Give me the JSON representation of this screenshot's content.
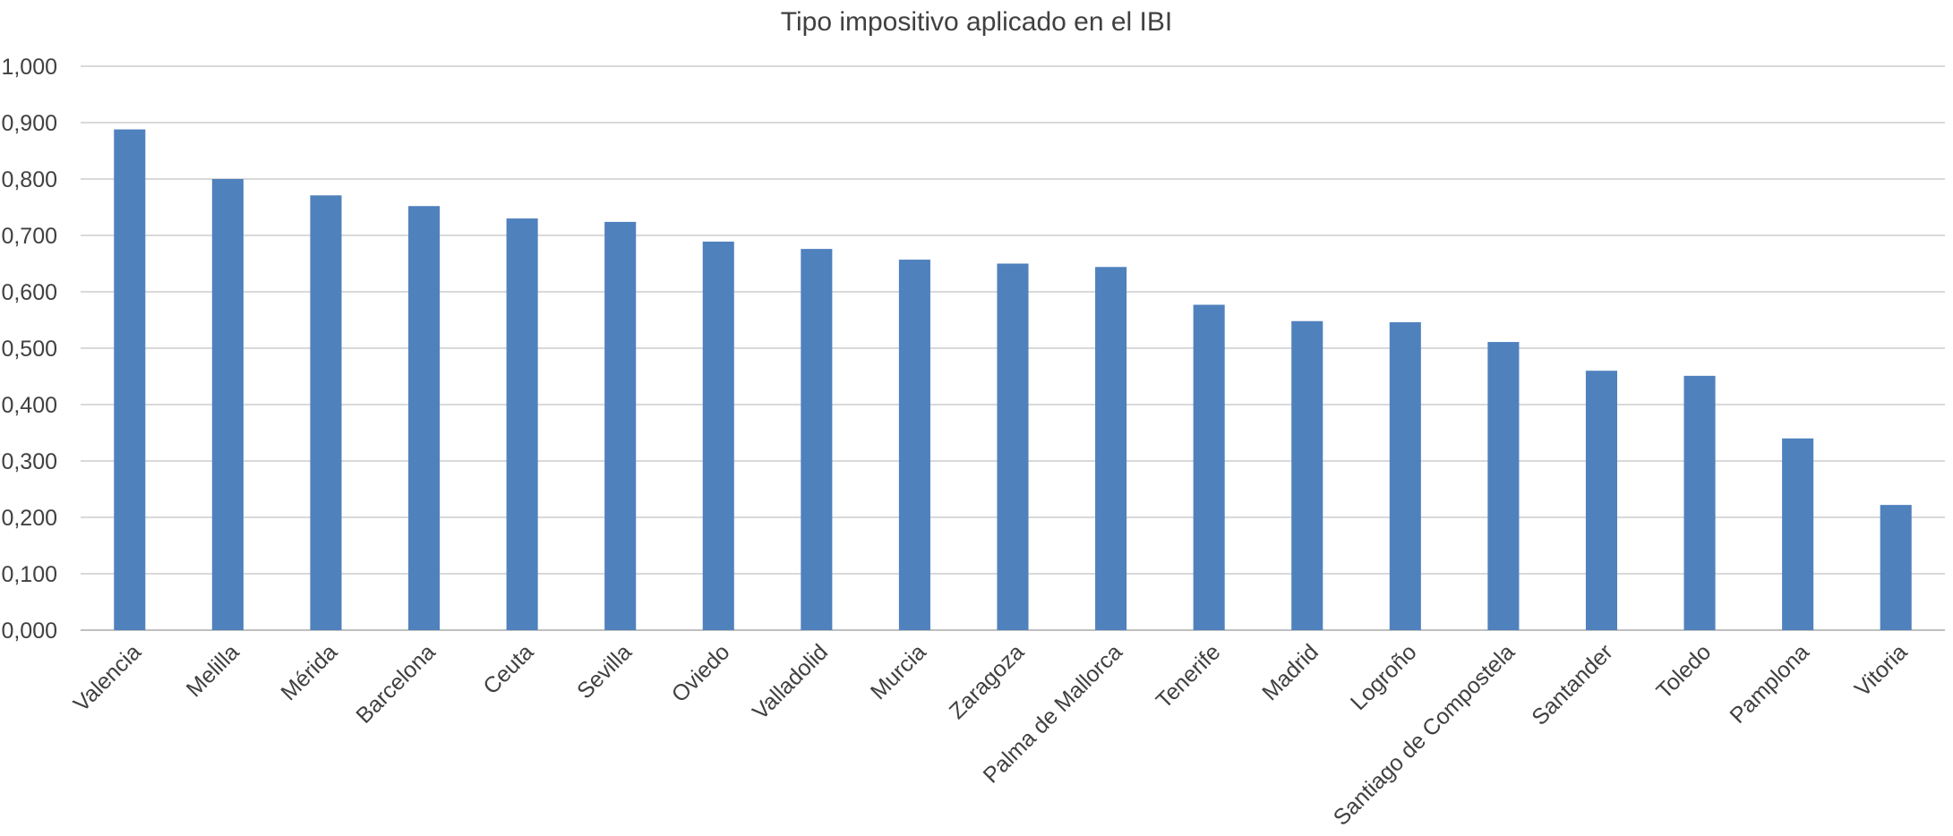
{
  "chart_data": {
    "type": "bar",
    "title": "Tipo impositivo aplicado en el IBI",
    "xlabel": "",
    "ylabel": "",
    "ylim": [
      0,
      1
    ],
    "y_ticks": [
      "0,000",
      "0,100",
      "0,200",
      "0,300",
      "0,400",
      "0,500",
      "0,600",
      "0,700",
      "0,800",
      "0,900",
      "1,000"
    ],
    "grid": true,
    "legend": "none",
    "bar_color": "#4F81BD",
    "categories": [
      "Valencia",
      "Melilla",
      "Mérida",
      "Barcelona",
      "Ceuta",
      "Sevilla",
      "Oviedo",
      "Valladolid",
      "Murcia",
      "Zaragoza",
      "Palma de Mallorca",
      "Tenerife",
      "Madrid",
      "Logroño",
      "Santiago de Compostela",
      "Santander",
      "Toledo",
      "Pamplona",
      "Vitoria"
    ],
    "values": [
      0.888,
      0.8,
      0.771,
      0.752,
      0.73,
      0.724,
      0.689,
      0.676,
      0.657,
      0.65,
      0.644,
      0.577,
      0.548,
      0.546,
      0.511,
      0.46,
      0.451,
      0.34,
      0.222
    ]
  }
}
